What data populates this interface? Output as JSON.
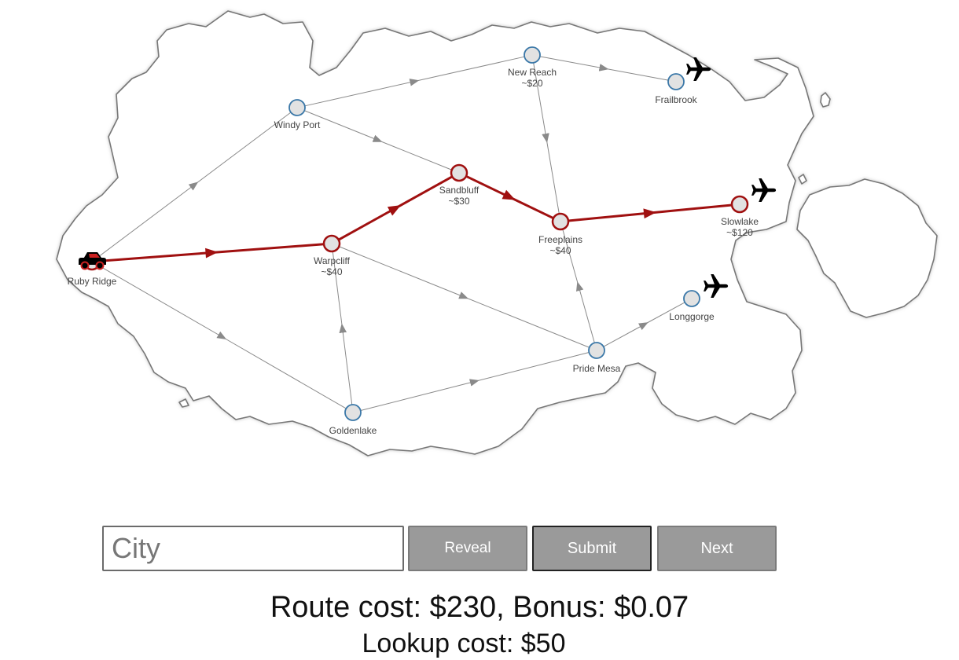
{
  "map": {
    "cities": [
      {
        "id": "ruby-ridge",
        "name": "Ruby Ridge",
        "cost": "",
        "on_route": true,
        "marker": "car-icon"
      },
      {
        "id": "windy-port",
        "name": "Windy Port",
        "cost": "",
        "on_route": false,
        "marker": ""
      },
      {
        "id": "new-reach",
        "name": "New Reach",
        "cost": "~$20",
        "on_route": false,
        "marker": ""
      },
      {
        "id": "frailbrook",
        "name": "Frailbrook",
        "cost": "",
        "on_route": false,
        "marker": "airplane-icon"
      },
      {
        "id": "sandbluff",
        "name": "Sandbluff",
        "cost": "~$30",
        "on_route": true,
        "marker": ""
      },
      {
        "id": "freeplains",
        "name": "Freeplains",
        "cost": "~$40",
        "on_route": true,
        "marker": ""
      },
      {
        "id": "slowlake",
        "name": "Slowlake",
        "cost": "~$120",
        "on_route": true,
        "marker": "airplane-icon"
      },
      {
        "id": "warpcliff",
        "name": "Warpcliff",
        "cost": "~$40",
        "on_route": true,
        "marker": ""
      },
      {
        "id": "longgorge",
        "name": "Longgorge",
        "cost": "",
        "on_route": false,
        "marker": "airplane-icon"
      },
      {
        "id": "pride-mesa",
        "name": "Pride Mesa",
        "cost": "",
        "on_route": false,
        "marker": ""
      },
      {
        "id": "goldenlake",
        "name": "Goldenlake",
        "cost": "",
        "on_route": false,
        "marker": ""
      }
    ],
    "roads": [
      {
        "from": "ruby-ridge",
        "to": "windy-port",
        "on_route": false
      },
      {
        "from": "ruby-ridge",
        "to": "warpcliff",
        "on_route": true
      },
      {
        "from": "ruby-ridge",
        "to": "goldenlake",
        "on_route": false
      },
      {
        "from": "windy-port",
        "to": "new-reach",
        "on_route": false
      },
      {
        "from": "windy-port",
        "to": "sandbluff",
        "on_route": false
      },
      {
        "from": "new-reach",
        "to": "frailbrook",
        "on_route": false
      },
      {
        "from": "new-reach",
        "to": "freeplains",
        "on_route": false
      },
      {
        "from": "warpcliff",
        "to": "sandbluff",
        "on_route": true
      },
      {
        "from": "warpcliff",
        "to": "pride-mesa",
        "on_route": false
      },
      {
        "from": "sandbluff",
        "to": "freeplains",
        "on_route": true
      },
      {
        "from": "freeplains",
        "to": "slowlake",
        "on_route": true
      },
      {
        "from": "goldenlake",
        "to": "warpcliff",
        "on_route": false
      },
      {
        "from": "goldenlake",
        "to": "pride-mesa",
        "on_route": false
      },
      {
        "from": "pride-mesa",
        "to": "freeplains",
        "on_route": false
      },
      {
        "from": "pride-mesa",
        "to": "longgorge",
        "on_route": false
      }
    ],
    "colors": {
      "route": "#a01010",
      "road": "#8a8a8a",
      "node_fill": "#e2e2e2",
      "node_stroke": "#3b78a8",
      "route_node_stroke": "#a01010",
      "land_stroke": "#777777"
    }
  },
  "controls": {
    "city_placeholder": "City",
    "city_value": "",
    "reveal_label": "Reveal",
    "submit_label": "Submit",
    "next_label": "Next"
  },
  "stats": {
    "route_cost_text": "Route cost: $230, Bonus: $0.07",
    "lookup_cost_text": "Lookup cost: $50"
  }
}
